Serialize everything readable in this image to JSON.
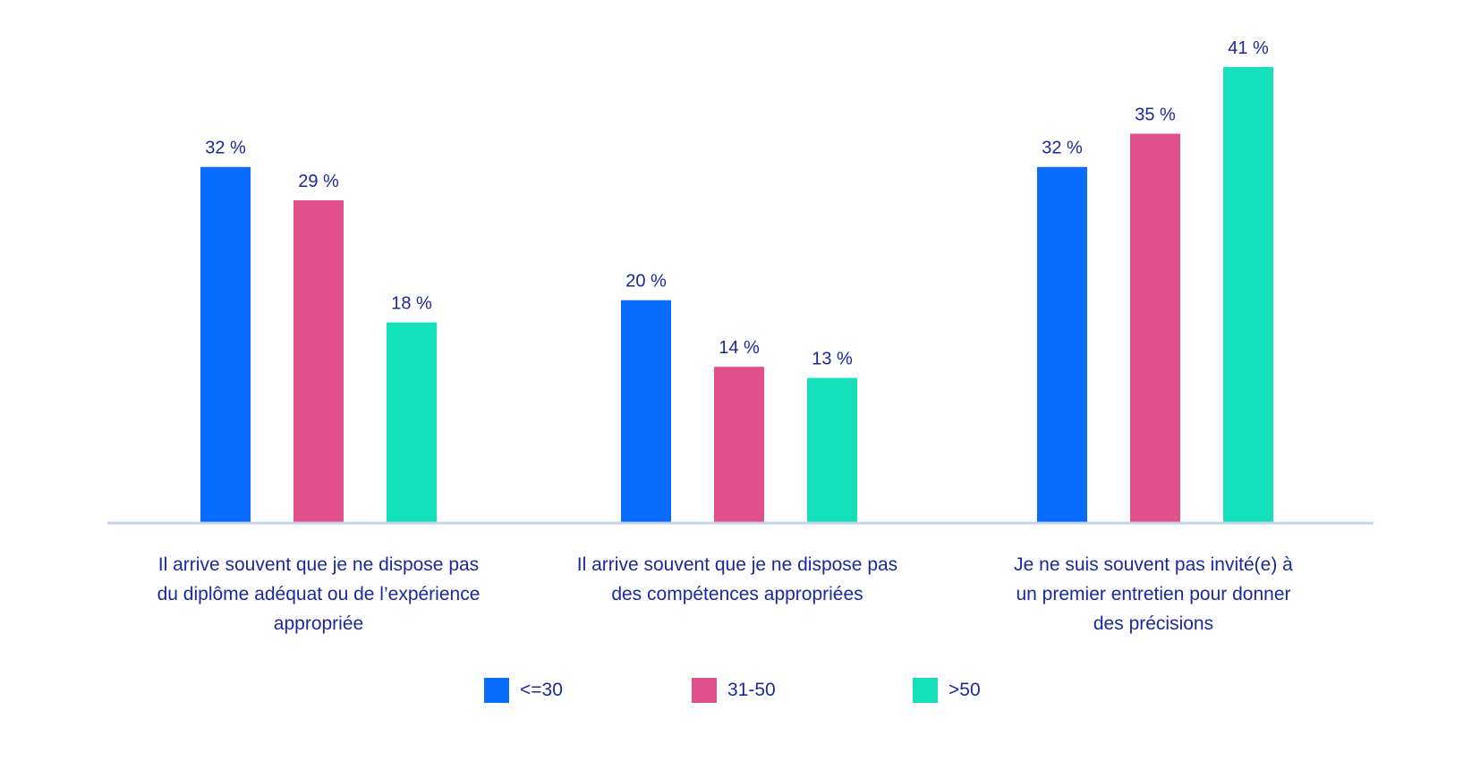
{
  "chart_data": {
    "type": "bar",
    "categories": [
      [
        "Il arrive souvent que je ne dispose pas",
        "du diplôme adéquat ou de l’expérience",
        "appropriée"
      ],
      [
        "Il arrive souvent que je ne dispose pas",
        "des compétences appropriées"
      ],
      [
        "Je ne suis souvent pas invité(e) à",
        "un premier entretien pour donner",
        "des précisions"
      ]
    ],
    "series": [
      {
        "name": "<=30",
        "color": "#0a6cff",
        "values": [
          32,
          20,
          32
        ],
        "labels": [
          "32 %",
          "20 %",
          "32 %"
        ]
      },
      {
        "name": "31-50",
        "color": "#e0508a",
        "values": [
          29,
          14,
          35
        ],
        "labels": [
          "29 %",
          "14 %",
          "35 %"
        ]
      },
      {
        "name": ">50",
        "color": "#14e0bb",
        "values": [
          18,
          13,
          41
        ],
        "labels": [
          "18 %",
          "13 %",
          "41 %"
        ]
      }
    ],
    "ylim": [
      0,
      41
    ],
    "grid": false,
    "legend_position": "bottom",
    "axis_color": "#c9d3ea",
    "label_color": "#1a2a9c"
  }
}
